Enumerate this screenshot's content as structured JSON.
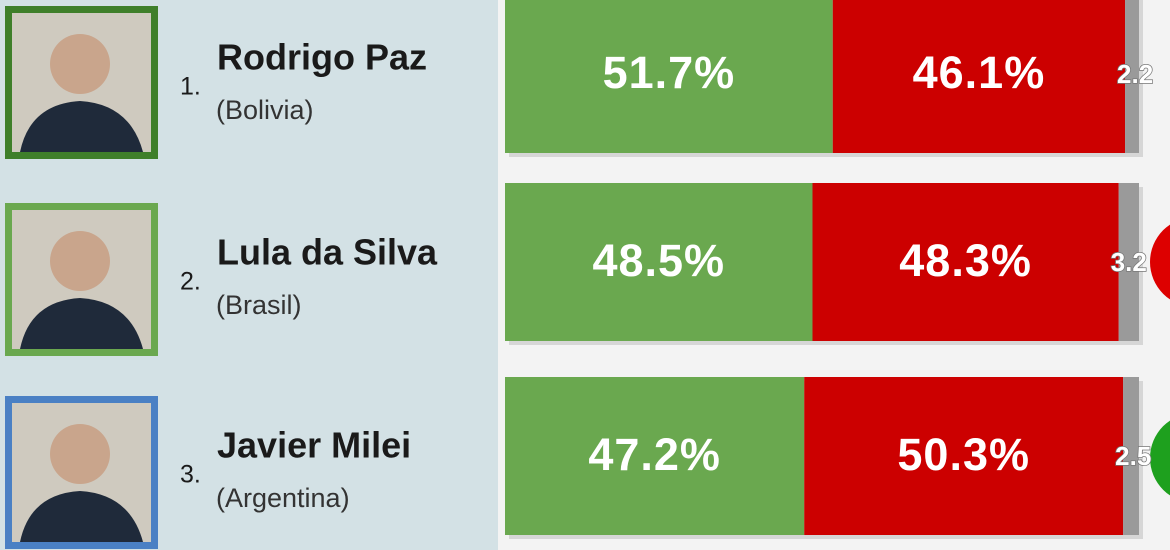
{
  "chart_data": {
    "type": "bar",
    "orientation": "horizontal",
    "stacked": true,
    "ranks": [
      "1.",
      "2.",
      "3."
    ],
    "categories": [
      "Rodrigo Paz",
      "Lula da Silva",
      "Javier Milei"
    ],
    "countries": [
      "(Bolivia)",
      "(Brasil)",
      "(Argentina)"
    ],
    "photo_borders": [
      "#3f7f2a",
      "#6aa84f",
      "#4a80c4"
    ],
    "xlim": [
      0,
      100
    ],
    "series": [
      {
        "color": "#6aa84f",
        "values": [
          51.7,
          48.5,
          47.2
        ],
        "value_labels": [
          "51.7%",
          "48.5%",
          "47.2%"
        ]
      },
      {
        "color": "#cc0000",
        "values": [
          46.1,
          48.3,
          50.3
        ],
        "value_labels": [
          "46.1%",
          "48.3%",
          "50.3%"
        ]
      },
      {
        "color": "#9a9a9a",
        "values": [
          2.2,
          3.2,
          2.5
        ]
      }
    ]
  }
}
